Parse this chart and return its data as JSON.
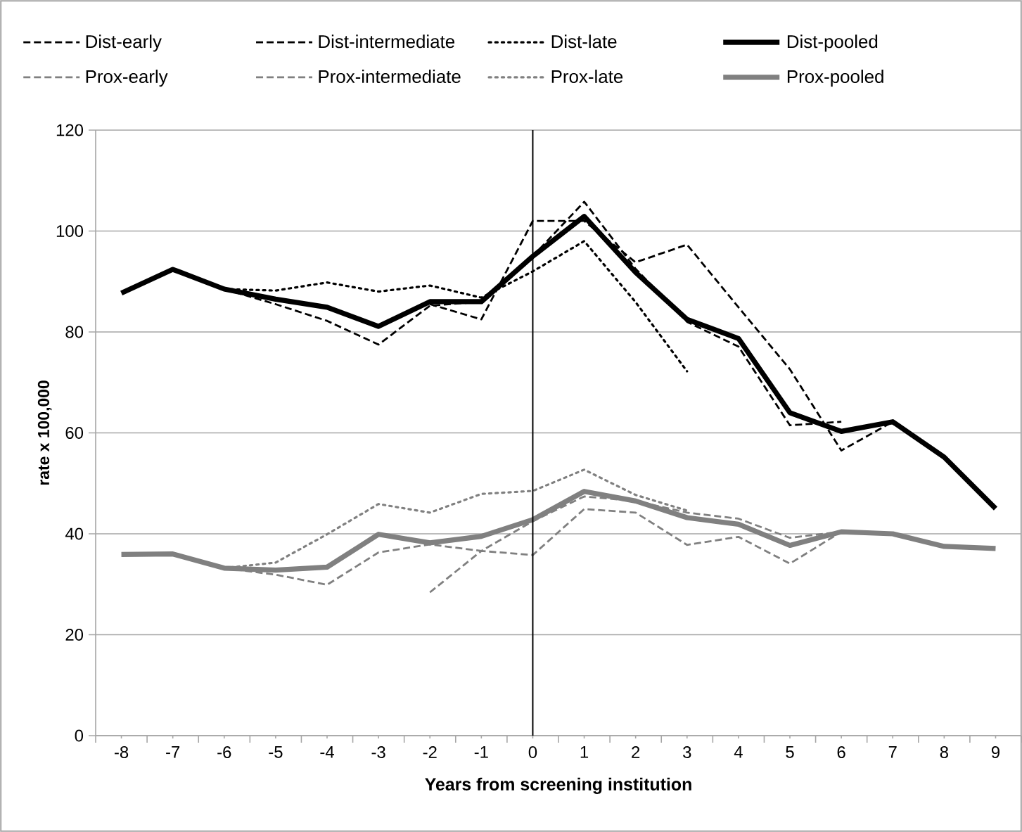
{
  "chart_data": {
    "type": "line",
    "xlabel": "Years from screening institution",
    "ylabel": "rate x 100,000",
    "x": [
      -8,
      -7,
      -6,
      -5,
      -4,
      -3,
      -2,
      -1,
      0,
      1,
      2,
      3,
      4,
      5,
      6,
      7,
      8,
      9
    ],
    "xlim": [
      -8.5,
      9.5
    ],
    "xticks": [
      -8,
      -7,
      -6,
      -5,
      -4,
      -3,
      -2,
      -1,
      0,
      1,
      2,
      3,
      4,
      5,
      6,
      7,
      8,
      9,
      {
        "value": -8.5,
        "label": null
      },
      {
        "value": -7.5,
        "label": null
      },
      {
        "value": -6.5,
        "label": null
      },
      {
        "value": -5.5,
        "label": null
      },
      {
        "value": -4.5,
        "label": null
      },
      {
        "value": -3.5,
        "label": null
      },
      {
        "value": -2.5,
        "label": null
      },
      {
        "value": -1.5,
        "label": null
      },
      {
        "value": -0.5,
        "label": null
      },
      {
        "value": 0.5,
        "label": null
      },
      {
        "value": 1.5,
        "label": null
      },
      {
        "value": 2.5,
        "label": null
      },
      {
        "value": 3.5,
        "label": null
      },
      {
        "value": 4.5,
        "label": null
      },
      {
        "value": 5.5,
        "label": null
      },
      {
        "value": 6.5,
        "label": null
      },
      {
        "value": 7.5,
        "label": null
      },
      {
        "value": 8.5,
        "label": null
      },
      {
        "value": 9.5,
        "label": null
      }
    ],
    "ylim": [
      0,
      120
    ],
    "yticks": [
      0,
      20,
      40,
      60,
      80,
      100,
      120
    ],
    "grid": "y",
    "legend": "top",
    "marker": "none",
    "ref_lines": [
      {
        "axis": "x",
        "value": 0,
        "color": "#000000"
      }
    ],
    "series": [
      {
        "name": "Dist-early",
        "color": "#000000",
        "line_style": "dashed",
        "values": [
          null,
          null,
          null,
          null,
          null,
          null,
          85.5,
          82.5,
          102,
          102,
          93.8,
          97.3,
          84.9,
          72.6,
          56.5,
          62.2,
          null,
          null
        ]
      },
      {
        "name": "Dist-intermediate",
        "color": "#000000",
        "line_style": "dashed",
        "values": [
          null,
          null,
          88.5,
          85.5,
          82.2,
          77.5,
          85.2,
          86,
          95,
          105.8,
          92.5,
          82,
          77.1,
          61.5,
          62.2,
          null,
          null,
          null
        ]
      },
      {
        "name": "Dist-late",
        "color": "#000000",
        "line_style": "dotted",
        "values": [
          null,
          null,
          88.5,
          88.2,
          89.8,
          88,
          89.2,
          86.8,
          92,
          98,
          85.9,
          72.2,
          null,
          null,
          null,
          null,
          null,
          null
        ]
      },
      {
        "name": "Dist-pooled",
        "color": "#000000",
        "line_style": "solid",
        "values": [
          87.7,
          92.4,
          88.5,
          86.5,
          84.9,
          81.1,
          86,
          86,
          95,
          102.9,
          91.8,
          82.5,
          78.7,
          64,
          60.3,
          62.2,
          55.2,
          45
        ]
      },
      {
        "name": "Prox-early",
        "color": "#808080",
        "line_style": "dashed",
        "values": [
          null,
          null,
          null,
          null,
          null,
          null,
          28.4,
          36.6,
          35.8,
          44.9,
          44.2,
          37.8,
          39.4,
          34.1,
          40.4,
          null,
          null,
          null
        ]
      },
      {
        "name": "Prox-intermediate",
        "color": "#808080",
        "line_style": "dashed",
        "values": [
          null,
          null,
          33.2,
          31.9,
          29.9,
          36.3,
          37.9,
          36.6,
          42.5,
          47.4,
          46.5,
          44.2,
          43,
          39.2,
          40.4,
          null,
          null,
          null
        ]
      },
      {
        "name": "Prox-late",
        "color": "#808080",
        "line_style": "dotted",
        "values": [
          null,
          null,
          33.2,
          34.3,
          39.9,
          45.9,
          44.2,
          47.9,
          48.5,
          52.7,
          47.7,
          44.6,
          null,
          null,
          null,
          null,
          null,
          null
        ]
      },
      {
        "name": "Prox-pooled",
        "color": "#808080",
        "line_style": "solid",
        "values": [
          35.9,
          36,
          33.2,
          32.8,
          33.4,
          39.9,
          38.2,
          39.5,
          42.8,
          48.4,
          46.5,
          43.2,
          41.9,
          37.7,
          40.4,
          40,
          37.5,
          37.1
        ]
      }
    ]
  }
}
